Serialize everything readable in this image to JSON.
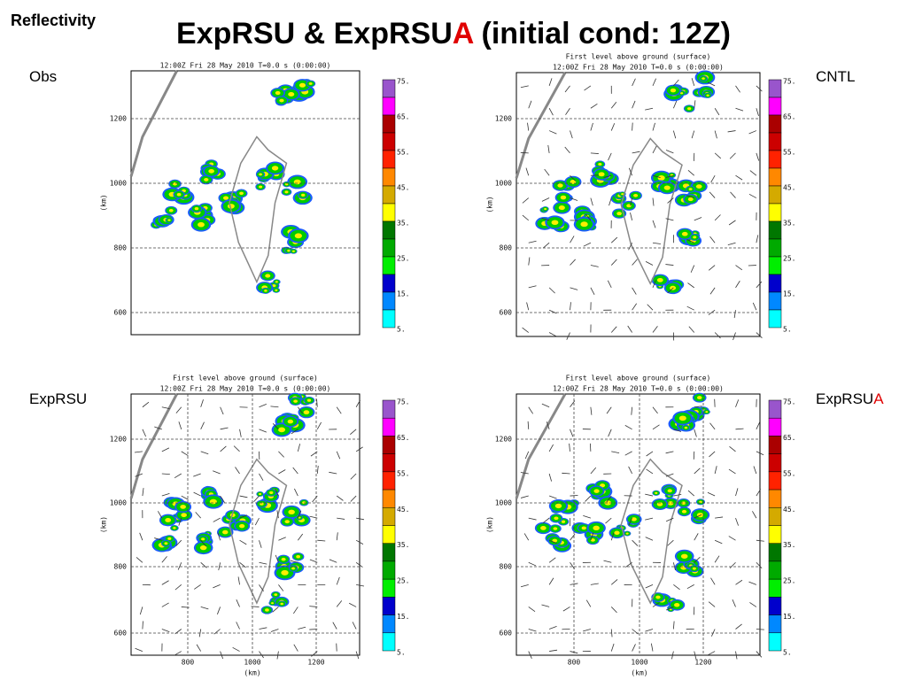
{
  "header": {
    "label": "Reflectivity",
    "title": [
      "ExpRSU & ExpRSU",
      "A",
      " (initial cond: 12Z)"
    ]
  },
  "panels": [
    {
      "label": [
        "Obs"
      ],
      "lines": [
        "12:00Z Fri 28 May 2010     T=0.0 s (0:00:00)"
      ],
      "y_axis": {
        "ticks": [
          1200,
          1000,
          800,
          600
        ],
        "unit": "(km)"
      },
      "colorbar": [
        "75.",
        "65.",
        "55.",
        "45.",
        "35.",
        "25.",
        "15.",
        "5."
      ]
    },
    {
      "label": [
        "CNTL"
      ],
      "lines": [
        "First level above ground (surface)",
        "12:00Z Fri 28 May 2010     T=0.0 s (0:00:00)"
      ],
      "y_axis": {
        "ticks": [
          1200,
          1000,
          800,
          600
        ],
        "unit": "(km)"
      },
      "colorbar": [
        "75.",
        "65.",
        "55.",
        "45.",
        "35.",
        "25.",
        "15.",
        "5."
      ]
    },
    {
      "label": [
        "ExpRSU"
      ],
      "lines": [
        "First level above ground (surface)",
        "12:00Z Fri 28 May 2010     T=0.0 s (0:00:00)"
      ],
      "y_axis": {
        "ticks": [
          1200,
          1000,
          800,
          600
        ],
        "unit": "(km)"
      },
      "x_axis": {
        "ticks": [
          800,
          1000,
          1200
        ],
        "unit": "(km)"
      },
      "colorbar": [
        "75.",
        "65.",
        "55.",
        "45.",
        "35.",
        "25.",
        "15.",
        "5."
      ]
    },
    {
      "label": [
        "ExpRSU",
        "A"
      ],
      "lines": [
        "First level above ground (surface)",
        "12:00Z Fri 28 May 2010     T=0.0 s (0:00:00)"
      ],
      "y_axis": {
        "ticks": [
          1200,
          1000,
          800,
          600
        ],
        "unit": "(km)"
      },
      "x_axis": {
        "ticks": [
          800,
          1000,
          1200
        ],
        "unit": "(km)"
      },
      "colorbar": [
        "75.",
        "65.",
        "55.",
        "45.",
        "35.",
        "25.",
        "15.",
        "5."
      ]
    }
  ]
}
